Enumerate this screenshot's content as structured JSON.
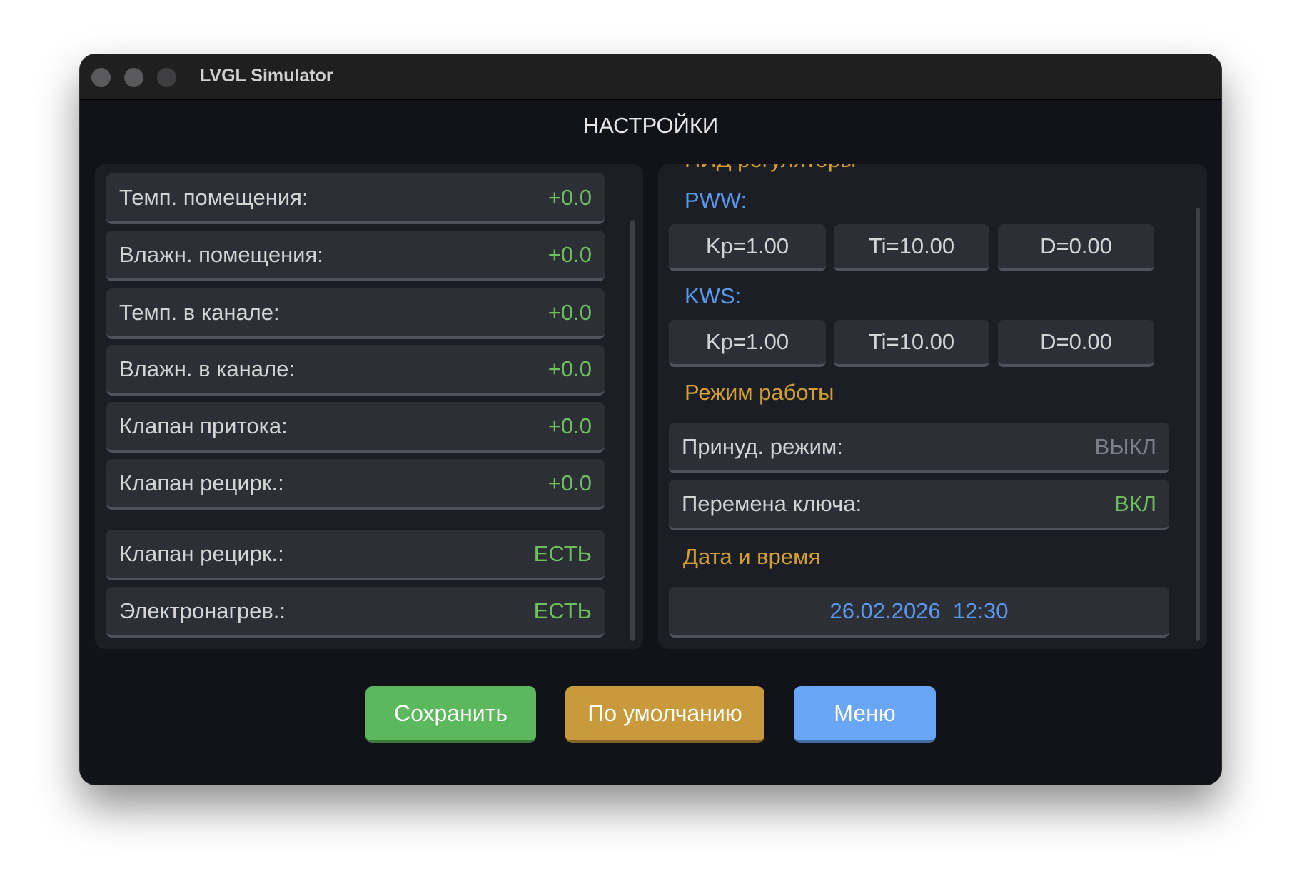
{
  "window": {
    "title": "LVGL Simulator"
  },
  "screen": {
    "title": "НАСТРОЙКИ"
  },
  "left_panel": {
    "rows": [
      {
        "label": "Темп. помещения:",
        "value": "+0.0"
      },
      {
        "label": "Влажн. помещения:",
        "value": "+0.0"
      },
      {
        "label": "Темп. в канале:",
        "value": "+0.0"
      },
      {
        "label": "Влажн. в канале:",
        "value": "+0.0"
      },
      {
        "label": "Клапан притока:",
        "value": "+0.0"
      },
      {
        "label": "Клапан рецирк.:",
        "value": "+0.0"
      },
      {
        "label": "Клапан рецирк.:",
        "value": "ЕСТЬ"
      },
      {
        "label": "Электронагрев.:",
        "value": "ЕСТЬ"
      }
    ]
  },
  "right_panel": {
    "pid_header": "ПИД регуляторы",
    "pww": {
      "label": "PWW:",
      "kp": "Kp=1.00",
      "ti": "Ti=10.00",
      "d": "D=0.00"
    },
    "kws": {
      "label": "KWS:",
      "kp": "Kp=1.00",
      "ti": "Ti=10.00",
      "d": "D=0.00"
    },
    "mode_header": "Режим работы",
    "forced_mode": {
      "label": "Принуд. режим:",
      "value": "ВЫКЛ"
    },
    "key_change": {
      "label": "Перемена ключа:",
      "value": "ВКЛ"
    },
    "datetime_header": "Дата и время",
    "datetime": "26.02.2026  12:30"
  },
  "buttons": {
    "save": "Сохранить",
    "default": "По умолчанию",
    "menu": "Меню"
  },
  "colors": {
    "save": "#5cb85c",
    "default": "#c99a3c",
    "menu": "#6aa6f8",
    "value_green": "#6cbf5c",
    "section_orange": "#d39f35",
    "label_blue": "#5a97ea"
  }
}
